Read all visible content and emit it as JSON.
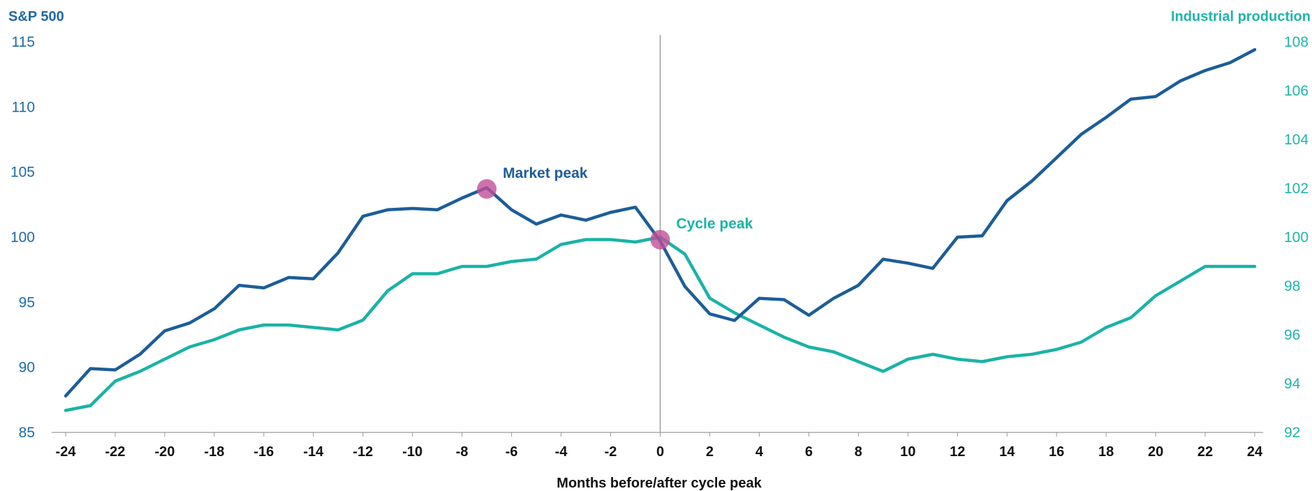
{
  "chart_data": {
    "type": "line",
    "xlabel": "Months before/after cycle peak",
    "x": [
      -24,
      -23,
      -22,
      -21,
      -20,
      -19,
      -18,
      -17,
      -16,
      -15,
      -14,
      -13,
      -12,
      -11,
      -10,
      -9,
      -8,
      -7,
      -6,
      -5,
      -4,
      -3,
      -2,
      -1,
      0,
      1,
      2,
      3,
      4,
      5,
      6,
      7,
      8,
      9,
      10,
      11,
      12,
      13,
      14,
      15,
      16,
      17,
      18,
      19,
      20,
      21,
      22,
      23,
      24
    ],
    "x_ticks": [
      "-24",
      "-22",
      "-20",
      "-18",
      "-16",
      "-14",
      "-12",
      "-10",
      "-8",
      "-6",
      "-4",
      "-2",
      "0",
      "2",
      "4",
      "6",
      "8",
      "10",
      "12",
      "14",
      "16",
      "18",
      "20",
      "22",
      "24"
    ],
    "xlim": [
      -24,
      24
    ],
    "left_axis": {
      "label": "S&P 500",
      "ylim": [
        85,
        115
      ],
      "ticks": [
        "85",
        "90",
        "95",
        "100",
        "105",
        "110",
        "115"
      ]
    },
    "right_axis": {
      "label": "Industrial production",
      "ylim": [
        92,
        108
      ],
      "ticks": [
        "92",
        "94",
        "96",
        "98",
        "100",
        "102",
        "104",
        "106",
        "108"
      ]
    },
    "series": [
      {
        "name": "S&P 500",
        "axis": "left",
        "color": "#1c5d99",
        "values": [
          87.8,
          89.9,
          89.8,
          91.0,
          92.8,
          93.4,
          94.5,
          96.3,
          96.1,
          96.9,
          96.8,
          98.8,
          101.6,
          102.1,
          102.2,
          102.1,
          103.0,
          103.8,
          102.1,
          101.0,
          101.7,
          101.3,
          101.9,
          102.3,
          99.7,
          96.2,
          94.1,
          93.6,
          95.3,
          95.2,
          94.0,
          95.3,
          96.3,
          98.3,
          98.0,
          97.6,
          100.0,
          100.1,
          102.8,
          104.3,
          106.1,
          107.9,
          109.2,
          110.6,
          110.8,
          112.0,
          112.8,
          113.4,
          114.4
        ]
      },
      {
        "name": "Industrial production",
        "axis": "right",
        "color": "#1ab3a6",
        "values": [
          92.9,
          93.1,
          94.1,
          94.5,
          95.0,
          95.5,
          95.8,
          96.2,
          96.4,
          96.4,
          96.3,
          96.2,
          96.6,
          97.8,
          98.5,
          98.5,
          98.8,
          98.8,
          99.0,
          99.1,
          99.7,
          99.9,
          99.9,
          99.8,
          100.0,
          99.3,
          97.5,
          96.9,
          96.4,
          95.9,
          95.5,
          95.3,
          94.9,
          94.5,
          95.0,
          95.2,
          95.0,
          94.9,
          95.1,
          95.2,
          95.4,
          95.7,
          96.3,
          96.7,
          97.6,
          98.2,
          98.8,
          98.8,
          98.8
        ]
      }
    ],
    "annotations": [
      {
        "label": "Market peak",
        "x": -7,
        "series": "S&P 500",
        "value": 103.7,
        "color": "#1c5d99"
      },
      {
        "label": "Cycle peak",
        "x": 0,
        "series": "S&P 500",
        "value": 99.8,
        "color": "#1ab3a6"
      }
    ],
    "marker_color": "#c04f97",
    "reference_line_x": 0,
    "grid": false,
    "colors": {
      "left_axis": "#1f6aa5",
      "right_axis": "#1fb5a8",
      "x_ticks": "#111111",
      "baseline": "#999999"
    }
  }
}
